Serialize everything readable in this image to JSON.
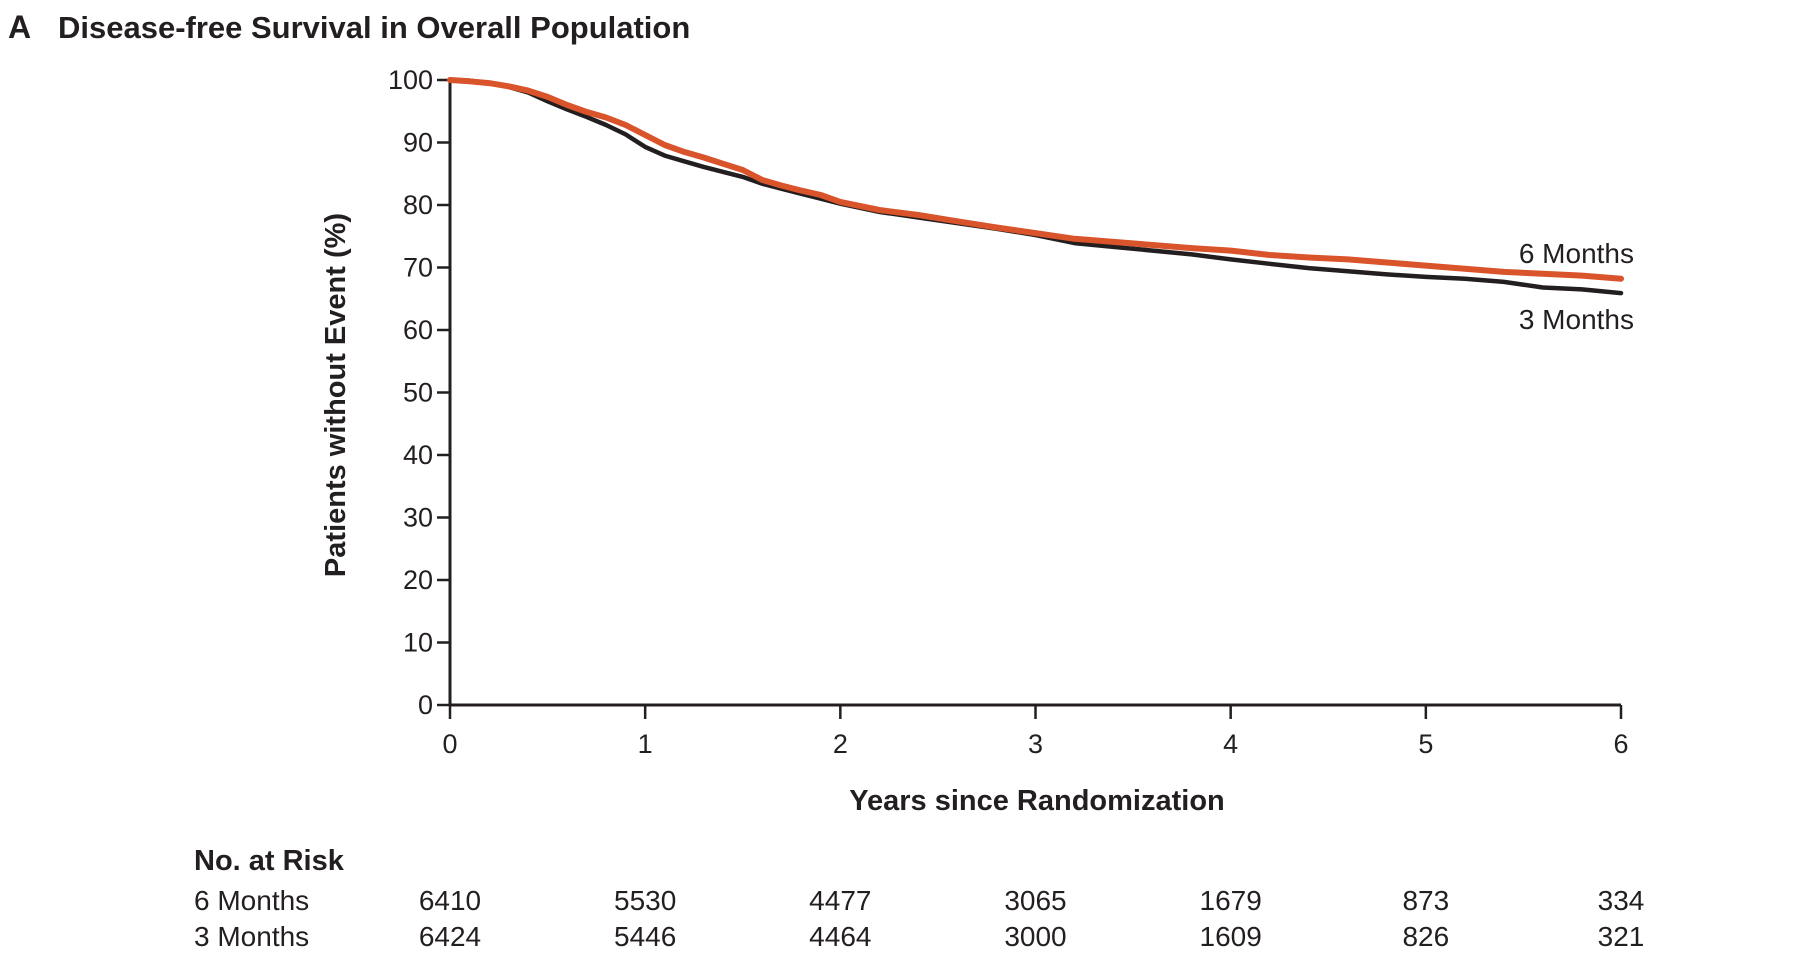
{
  "chart_data": {
    "type": "line",
    "panel_label": "A",
    "title": "Disease-free Survival in Overall Population",
    "xlabel": "Years since Randomization",
    "ylabel": "Patients without Event (%)",
    "xlim": [
      0,
      6
    ],
    "ylim": [
      0,
      100
    ],
    "x_ticks": [
      0,
      1,
      2,
      3,
      4,
      5,
      6
    ],
    "y_ticks": [
      0,
      10,
      20,
      30,
      40,
      50,
      60,
      70,
      80,
      90,
      100
    ],
    "grid": false,
    "legend": "direct labels at right end of curves",
    "series": [
      {
        "name": "6 Months",
        "color": "#d9532b",
        "x": [
          0,
          0.1,
          0.2,
          0.3,
          0.4,
          0.5,
          0.6,
          0.7,
          0.8,
          0.9,
          1.0,
          1.1,
          1.2,
          1.3,
          1.4,
          1.5,
          1.6,
          1.7,
          1.8,
          1.9,
          2.0,
          2.2,
          2.4,
          2.6,
          2.8,
          3.0,
          3.2,
          3.4,
          3.6,
          3.8,
          4.0,
          4.2,
          4.4,
          4.6,
          4.8,
          5.0,
          5.2,
          5.4,
          5.6,
          5.8,
          6.0
        ],
        "y": [
          100,
          99.8,
          99.5,
          99.0,
          98.3,
          97.3,
          96.0,
          94.9,
          94.0,
          92.8,
          91.2,
          89.6,
          88.5,
          87.6,
          86.6,
          85.6,
          84.0,
          83.1,
          82.3,
          81.6,
          80.5,
          79.2,
          78.4,
          77.4,
          76.4,
          75.5,
          74.6,
          74.1,
          73.6,
          73.1,
          72.7,
          72.0,
          71.6,
          71.3,
          70.8,
          70.3,
          69.8,
          69.3,
          69.0,
          68.7,
          68.2
        ]
      },
      {
        "name": "3 Months",
        "color": "#231f20",
        "x": [
          0,
          0.1,
          0.2,
          0.3,
          0.4,
          0.5,
          0.6,
          0.7,
          0.8,
          0.9,
          1.0,
          1.1,
          1.2,
          1.3,
          1.4,
          1.5,
          1.6,
          1.7,
          1.8,
          1.9,
          2.0,
          2.2,
          2.4,
          2.6,
          2.8,
          3.0,
          3.2,
          3.4,
          3.6,
          3.8,
          4.0,
          4.2,
          4.4,
          4.6,
          4.8,
          5.0,
          5.2,
          5.4,
          5.6,
          5.8,
          6.0
        ],
        "y": [
          100,
          99.9,
          99.5,
          98.9,
          98.0,
          96.6,
          95.3,
          94.1,
          92.8,
          91.3,
          89.3,
          87.9,
          87.0,
          86.1,
          85.3,
          84.5,
          83.4,
          82.6,
          81.8,
          81.0,
          80.2,
          78.9,
          78.0,
          77.1,
          76.2,
          75.2,
          73.9,
          73.3,
          72.7,
          72.1,
          71.3,
          70.6,
          69.9,
          69.4,
          68.9,
          68.5,
          68.2,
          67.7,
          66.8,
          66.5,
          65.9
        ]
      }
    ],
    "risk_table": {
      "header": "No. at Risk",
      "rows": [
        {
          "name": "6 Months",
          "values": [
            "6410",
            "5530",
            "4477",
            "3065",
            "1679",
            "873",
            "334"
          ]
        },
        {
          "name": "3 Months",
          "values": [
            "6424",
            "5446",
            "4464",
            "3000",
            "1609",
            "826",
            "321"
          ]
        }
      ]
    }
  }
}
